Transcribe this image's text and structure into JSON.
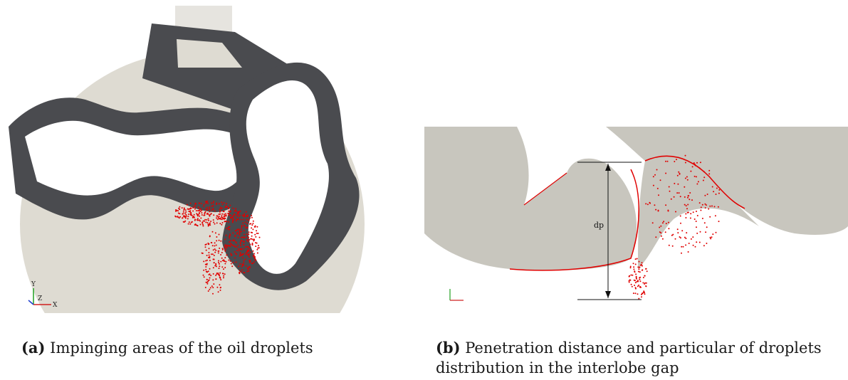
{
  "subfigure_a": {
    "axes_triad": {
      "y": "Y",
      "z": "Z",
      "x": "X"
    }
  },
  "subfigure_b": {
    "dimension_label": "dp"
  },
  "captions": [
    {
      "tag": "(a)",
      "text": "Impinging areas of the oil droplets"
    },
    {
      "tag": "(b)",
      "text": "Penetration distance and particular of droplets distribution in the interlobe gap"
    }
  ],
  "colors": {
    "housing": "#dedbd2",
    "rotor_surface": "#4a4b4f",
    "droplets": "#e00000",
    "gap_region": "#c8c6be"
  }
}
